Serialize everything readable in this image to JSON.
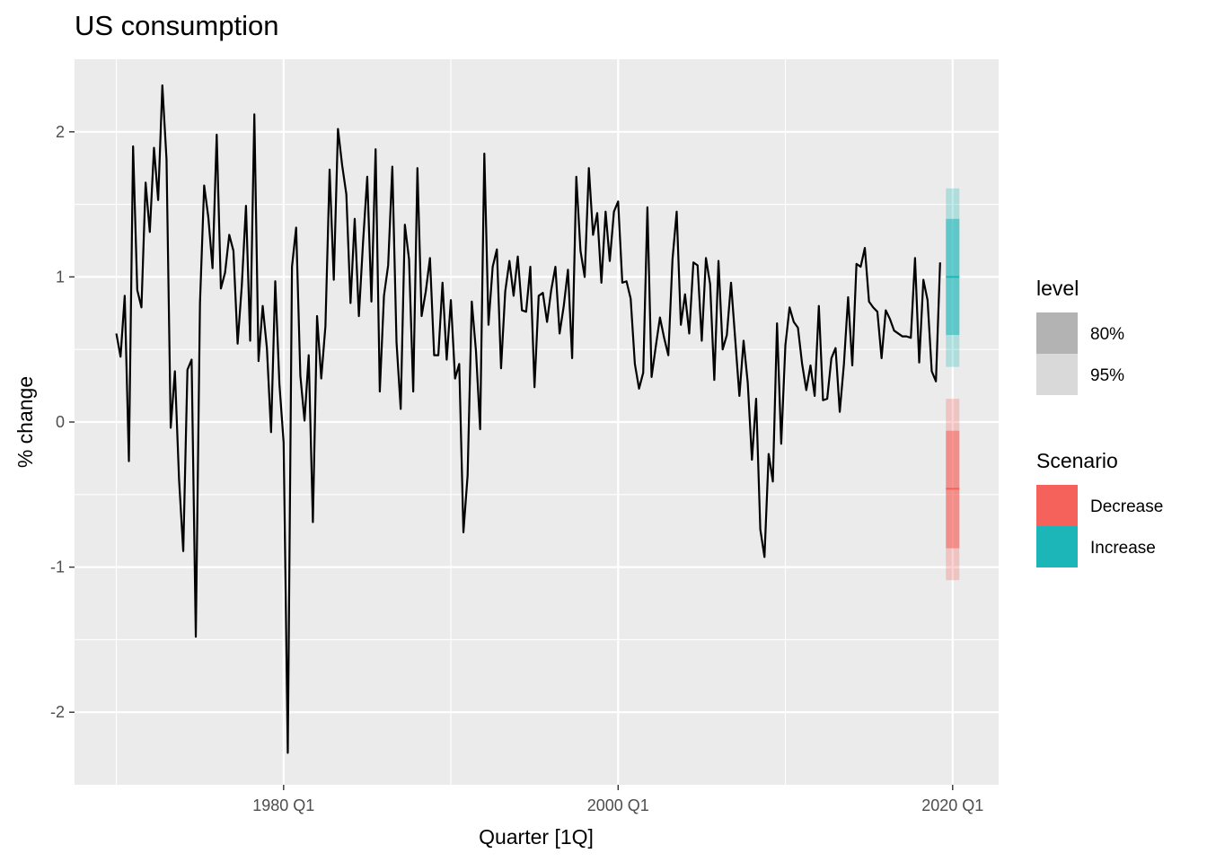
{
  "chart_data": {
    "type": "line",
    "title": "US consumption",
    "xlabel": "Quarter [1Q]",
    "ylabel": "% change",
    "x_range": [
      1967.5,
      2022.75
    ],
    "ylim": [
      -2.5,
      2.5
    ],
    "x_ticks": [
      {
        "value": 1980.0,
        "label": "1980 Q1"
      },
      {
        "value": 2000.0,
        "label": "2000 Q1"
      },
      {
        "value": 2020.0,
        "label": "2020 Q1"
      }
    ],
    "y_ticks": [
      {
        "value": -2,
        "label": "-2"
      },
      {
        "value": -1,
        "label": "-1"
      },
      {
        "value": 0,
        "label": "0"
      },
      {
        "value": 1,
        "label": "1"
      },
      {
        "value": 2,
        "label": "2"
      }
    ],
    "grid": true,
    "series": [
      {
        "x_start": 1970.0,
        "x_step": 0.25,
        "color": "#000000",
        "values": [
          0.61,
          0.45,
          0.87,
          -0.27,
          1.9,
          0.91,
          0.79,
          1.65,
          1.31,
          1.89,
          1.53,
          2.32,
          1.81,
          -0.04,
          0.35,
          -0.4,
          -0.89,
          0.36,
          0.43,
          -1.48,
          0.82,
          1.63,
          1.41,
          1.06,
          1.98,
          0.92,
          1.03,
          1.29,
          1.18,
          0.54,
          0.94,
          1.49,
          0.56,
          2.12,
          0.42,
          0.8,
          0.51,
          -0.07,
          0.97,
          0.26,
          -0.14,
          -2.28,
          1.07,
          1.34,
          0.32,
          0.01,
          0.46,
          -0.69,
          0.73,
          0.3,
          0.66,
          1.74,
          0.98,
          2.02,
          1.77,
          1.57,
          0.82,
          1.4,
          0.73,
          1.24,
          1.69,
          0.83,
          1.88,
          0.21,
          0.87,
          1.08,
          1.76,
          0.55,
          0.09,
          1.36,
          1.12,
          0.21,
          1.75,
          0.73,
          0.9,
          1.13,
          0.46,
          0.46,
          0.96,
          0.43,
          0.84,
          0.3,
          0.4,
          -0.76,
          -0.37,
          0.83,
          0.49,
          -0.05,
          1.85,
          0.67,
          1.07,
          1.19,
          0.37,
          0.9,
          1.11,
          0.87,
          1.14,
          0.77,
          0.76,
          1.07,
          0.24,
          0.87,
          0.89,
          0.69,
          0.91,
          1.07,
          0.61,
          0.8,
          1.05,
          0.44,
          1.69,
          1.18,
          1.0,
          1.75,
          1.29,
          1.44,
          0.96,
          1.45,
          1.11,
          1.45,
          1.52,
          0.96,
          0.97,
          0.85,
          0.4,
          0.23,
          0.34,
          1.48,
          0.31,
          0.52,
          0.72,
          0.58,
          0.46,
          1.12,
          1.45,
          0.67,
          0.88,
          0.61,
          1.1,
          1.08,
          0.56,
          1.13,
          0.95,
          0.29,
          1.11,
          0.5,
          0.6,
          0.96,
          0.57,
          0.18,
          0.56,
          0.27,
          -0.26,
          0.16,
          -0.74,
          -0.93,
          -0.22,
          -0.41,
          0.68,
          -0.15,
          0.53,
          0.79,
          0.69,
          0.65,
          0.4,
          0.22,
          0.39,
          0.18,
          0.8,
          0.15,
          0.16,
          0.44,
          0.51,
          0.07,
          0.4,
          0.86,
          0.39,
          1.09,
          1.07,
          1.2,
          0.83,
          0.79,
          0.76,
          0.44,
          0.77,
          0.71,
          0.63,
          0.61,
          0.59,
          0.59,
          0.58,
          1.13,
          0.41,
          0.98,
          0.84,
          0.35,
          0.28,
          1.1
        ]
      }
    ],
    "forecast": [
      {
        "scenario": "Increase",
        "x": 2020.0,
        "mean": 1.0,
        "lo80": 0.6,
        "hi80": 1.4,
        "lo95": 0.38,
        "hi95": 1.61,
        "color": "#1cb6b8"
      },
      {
        "scenario": "Decrease",
        "x": 2020.0,
        "mean": -0.46,
        "lo80": -0.87,
        "hi80": -0.06,
        "lo95": -1.09,
        "hi95": 0.16,
        "color": "#f5625b"
      }
    ],
    "legend": {
      "position": "right",
      "level": {
        "title": "level",
        "items": [
          {
            "label": "80%",
            "color": "#b3b3b3"
          },
          {
            "label": "95%",
            "color": "#d9d9d9"
          }
        ]
      },
      "scenario": {
        "title": "Scenario",
        "items": [
          {
            "label": "Decrease",
            "color": "#f5625b"
          },
          {
            "label": "Increase",
            "color": "#1cb6b8"
          }
        ]
      }
    }
  }
}
